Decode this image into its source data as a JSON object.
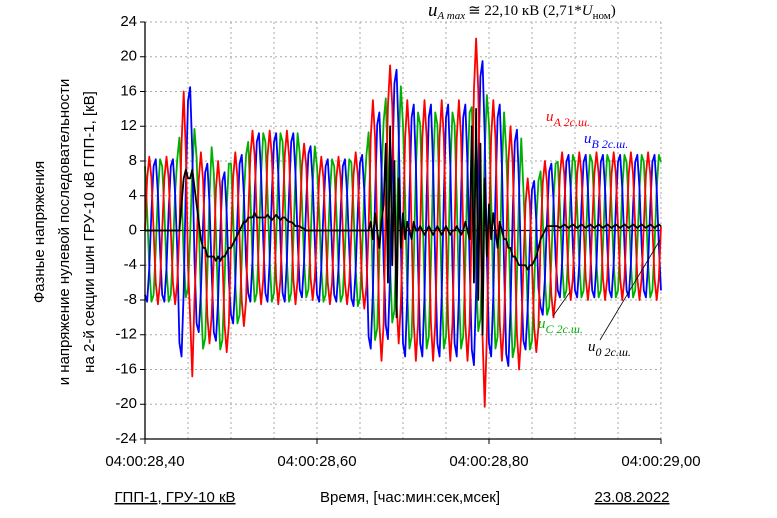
{
  "chart_data": {
    "type": "line",
    "ylabel": [
      "Фазные напряжения",
      "и напряжение нулевой последовательности",
      "на 2-й секции шин ГРУ-10 кВ ГПП-1, [кВ]"
    ],
    "xlabel": "Время, [час:мин:сек,мсек]",
    "footer_left": "ГПП-1, ГРУ-10 кВ",
    "footer_right": "23.08.2022",
    "peak_annotation": {
      "symbol": "u",
      "subscript": "A max",
      "text": "≅ 22,10 кВ (2,71*",
      "symbol2": "U",
      "subscript2": "ном",
      "close": ")"
    },
    "xlim": [
      28.4,
      29.0
    ],
    "xticks": [
      {
        "value": 28.4,
        "label": "04:00:28,40"
      },
      {
        "value": 28.6,
        "label": "04:00:28,60"
      },
      {
        "value": 28.8,
        "label": "04:00:28,80"
      },
      {
        "value": 29.0,
        "label": "04:00:29,00"
      }
    ],
    "xgrid": [
      28.45,
      28.5,
      28.55,
      28.65,
      28.7,
      28.75,
      28.85,
      28.9,
      28.95
    ],
    "ylim": [
      -24,
      24
    ],
    "yticks": [
      -24,
      -20,
      -16,
      -12,
      -8,
      -4,
      0,
      4,
      8,
      12,
      16,
      20,
      24
    ],
    "grid": true,
    "x": [
      28.4,
      28.4025,
      28.405,
      28.4075,
      28.41,
      28.4125,
      28.415,
      28.4175,
      28.42,
      28.4225,
      28.425,
      28.4275,
      28.43,
      28.4325,
      28.435,
      28.4375,
      28.44,
      28.4425,
      28.445,
      28.4475,
      28.45,
      28.4525,
      28.455,
      28.4575,
      28.46,
      28.4625,
      28.465,
      28.4675,
      28.47,
      28.4725,
      28.475,
      28.4775,
      28.48,
      28.4825,
      28.485,
      28.4875,
      28.49,
      28.4925,
      28.495,
      28.4975,
      28.5,
      28.5025,
      28.505,
      28.5075,
      28.51,
      28.5125,
      28.515,
      28.5175,
      28.52,
      28.5225,
      28.525,
      28.5275,
      28.53,
      28.5325,
      28.535,
      28.5375,
      28.54,
      28.5425,
      28.545,
      28.5475,
      28.55,
      28.5525,
      28.555,
      28.5575,
      28.56,
      28.5625,
      28.565,
      28.5675,
      28.57,
      28.5725,
      28.575,
      28.5775,
      28.58,
      28.5825,
      28.585,
      28.5875,
      28.59,
      28.5925,
      28.595,
      28.5975,
      28.6,
      28.6025,
      28.605,
      28.6075,
      28.61,
      28.6125,
      28.615,
      28.6175,
      28.62,
      28.6225,
      28.625,
      28.6275,
      28.63,
      28.6325,
      28.635,
      28.6375,
      28.64,
      28.6425,
      28.645,
      28.6475,
      28.65,
      28.6525,
      28.655,
      28.6575,
      28.66,
      28.6625,
      28.665,
      28.6675,
      28.67,
      28.6725,
      28.675,
      28.6775,
      28.68,
      28.6825,
      28.685,
      28.6875,
      28.69,
      28.6925,
      28.695,
      28.6975,
      28.7,
      28.7025,
      28.705,
      28.7075,
      28.71,
      28.7125,
      28.715,
      28.7175,
      28.72,
      28.7225,
      28.725,
      28.7275,
      28.73,
      28.7325,
      28.735,
      28.7375,
      28.74,
      28.7425,
      28.745,
      28.7475,
      28.75,
      28.7525,
      28.755,
      28.7575,
      28.76,
      28.7625,
      28.765,
      28.7675,
      28.77,
      28.7725,
      28.775,
      28.7775,
      28.78,
      28.7825,
      28.785,
      28.7875,
      28.79,
      28.7925,
      28.795,
      28.7975,
      28.8,
      28.8025,
      28.805,
      28.8075,
      28.81,
      28.8125,
      28.815,
      28.8175,
      28.82,
      28.8225,
      28.825,
      28.8275,
      28.83,
      28.8325,
      28.835,
      28.8375,
      28.84,
      28.8425,
      28.845,
      28.8475,
      28.85,
      28.8525,
      28.855,
      28.8575,
      28.86,
      28.8625,
      28.865,
      28.8675,
      28.87,
      28.8725,
      28.875,
      28.8775,
      28.88,
      28.8825,
      28.885,
      28.8875,
      28.89,
      28.8925,
      28.895,
      28.8975,
      28.9,
      28.9025,
      28.905,
      28.9075,
      28.91,
      28.9125,
      28.915,
      28.9175,
      28.92,
      28.9225,
      28.925,
      28.9275,
      28.93,
      28.9325,
      28.935,
      28.9375,
      28.94,
      28.9425,
      28.945,
      28.9475,
      28.95,
      28.9525,
      28.955,
      28.9575,
      28.96,
      28.9625,
      28.965,
      28.9675,
      28.97,
      28.9725,
      28.975,
      28.9775,
      28.98,
      28.9825,
      28.985,
      28.9875,
      28.99,
      28.9925,
      28.995,
      28.9975,
      29.0
    ],
    "series": [
      {
        "name": "A 2с.ш.",
        "symbol": "u",
        "color": "#ff0000",
        "values": [
          0,
          6,
          8.5,
          6,
          0,
          -6,
          -8.5,
          -6,
          0,
          6,
          8.5,
          6,
          0,
          -6,
          -8.5,
          -6,
          0,
          10,
          16,
          9,
          -4,
          -10,
          -16.8,
          -8,
          -2,
          5.8,
          9,
          5.8,
          -2,
          -9.8,
          -13,
          -9.8,
          -3,
          4.8,
          8,
          4.8,
          -3,
          -10.8,
          -14,
          -10.8,
          -1,
          6.1,
          9,
          6.1,
          -1,
          -8.1,
          -11,
          -8.1,
          1.5,
          8.6,
          11.5,
          8.6,
          1.5,
          -5.6,
          -8.5,
          -5.6,
          1.5,
          8.6,
          11.5,
          8.6,
          1.5,
          -5.6,
          -8.5,
          -5.6,
          1.5,
          8.6,
          11.5,
          8.6,
          1.5,
          -5.6,
          -8.5,
          -5.6,
          1,
          7.4,
          10,
          7.4,
          1,
          -5.4,
          -8,
          -5.4,
          0,
          6,
          8.5,
          6,
          0,
          -6,
          -8.5,
          -6,
          0,
          6,
          8.5,
          6,
          0,
          -6,
          -8.5,
          -6,
          0,
          6.4,
          9,
          6.4,
          0,
          -6.4,
          -9,
          -6.4,
          0,
          10.7,
          15,
          10.7,
          0,
          -10.7,
          -15,
          -10.7,
          3,
          14.4,
          19,
          14.4,
          3,
          -8.4,
          -13,
          -8.4,
          0,
          10.7,
          15,
          10.7,
          0,
          -10.7,
          -15,
          -10.7,
          0,
          10.7,
          15,
          10.7,
          0,
          -10.7,
          -15,
          -10.7,
          0,
          10.7,
          15,
          10.7,
          0,
          -10.7,
          -15,
          -10.7,
          0,
          10.7,
          15,
          10.7,
          0,
          -10.7,
          -15,
          -10.7,
          2,
          16.2,
          22.1,
          16.2,
          2,
          -12.2,
          -20.3,
          -12.2,
          0,
          10.7,
          15,
          10.7,
          0,
          -10.7,
          -15,
          -10.7,
          -2,
          7.9,
          12,
          7.9,
          -2,
          -11.9,
          -16,
          -11.9,
          -4,
          3.1,
          6,
          3.1,
          -4,
          -11.1,
          -14,
          -11.1,
          -1,
          5.4,
          8,
          5.4,
          -1,
          -7.4,
          -10,
          -7.4,
          0.5,
          6.5,
          9,
          6.5,
          0.5,
          -5.5,
          -8,
          -5.5,
          0.5,
          6.5,
          9,
          6.5,
          0.5,
          -5.5,
          -8,
          -5.5,
          0.5,
          6.5,
          9,
          6.5,
          0.5,
          -5.5,
          -8,
          -5.5,
          0.5,
          6.5,
          9,
          6.5,
          0.5,
          -5.5,
          -8,
          -5.5,
          0.5,
          6.5,
          9,
          6.5,
          0.5,
          -5.5,
          -8,
          -5.5,
          0.5,
          6.5,
          9,
          6.5,
          0.5,
          -5.5,
          -8,
          -5.5,
          0.5
        ]
      },
      {
        "name": "B 2с.ш.",
        "symbol": "u",
        "color": "#0000ff",
        "values": [
          -7.4,
          -8.2,
          -4.3,
          2.2,
          7.4,
          8.2,
          4.3,
          -2.2,
          -7.4,
          -8.2,
          -4.3,
          2.2,
          7.4,
          8.2,
          4.3,
          -2.2,
          -12.9,
          -14.5,
          -7,
          5.2,
          14.9,
          16.5,
          9,
          -3.2,
          -10.7,
          -11.7,
          -7,
          0.6,
          6.7,
          7.7,
          3,
          -4.6,
          -11.7,
          -12.7,
          -8,
          -0.4,
          5.7,
          6.7,
          2,
          -5.6,
          -9.7,
          -10.7,
          -6,
          1.6,
          7.7,
          8.7,
          4,
          -3.6,
          -7.2,
          -8.2,
          -3.5,
          4.1,
          10.2,
          11.2,
          6.5,
          -1.1,
          -7.2,
          -8.2,
          -3.5,
          4.1,
          10.2,
          11.2,
          6.5,
          -1.1,
          -7.2,
          -8.2,
          -3.5,
          4.1,
          10.2,
          11.2,
          6.5,
          -1.1,
          -6.8,
          -7.7,
          -3.5,
          3.3,
          8.8,
          9.7,
          5.5,
          -1.3,
          -7.4,
          -8.2,
          -4.3,
          2.2,
          7.4,
          8.2,
          4.3,
          -2.2,
          -7.4,
          -8.2,
          -4.3,
          2.2,
          7.4,
          8.2,
          4.3,
          -2.2,
          -7.8,
          -8.7,
          -4.5,
          2.3,
          7.8,
          8.7,
          4.5,
          -2.3,
          -12.2,
          -13.6,
          -7,
          3.6,
          12.2,
          13.6,
          7,
          -3.6,
          -10.9,
          -12.5,
          -5,
          7.2,
          16.9,
          18.5,
          11,
          -1.2,
          -13,
          -14.5,
          -7.5,
          3.9,
          13,
          14.5,
          7.5,
          -3.9,
          -13,
          -14.5,
          -7.5,
          3.9,
          13,
          14.5,
          7.5,
          -3.9,
          -13,
          -14.5,
          -7.5,
          3.9,
          13,
          14.5,
          7.5,
          -3.9,
          -13,
          -14.5,
          -7.5,
          3.9,
          13,
          14.5,
          7.5,
          -3.9,
          -13.7,
          -15.5,
          -7,
          6.7,
          17.7,
          19.5,
          11,
          -2.7,
          -13,
          -14.5,
          -7.5,
          3.9,
          13,
          14.5,
          7.5,
          -3.9,
          -14.2,
          -15.6,
          -9,
          1.6,
          10.2,
          11.6,
          5,
          -5.6,
          -12.7,
          -13.7,
          -9,
          -1.4,
          4.7,
          5.7,
          1,
          -6.6,
          -8.8,
          -9.7,
          -5.5,
          1.3,
          6.8,
          7.7,
          3.5,
          -3.3,
          -6.9,
          -7.7,
          -3.8,
          2.7,
          7.9,
          8.7,
          4.8,
          -1.7,
          -6.9,
          -7.7,
          -3.8,
          2.7,
          7.9,
          8.7,
          4.8,
          -1.7,
          -6.9,
          -7.7,
          -3.8,
          2.7,
          7.9,
          8.7,
          4.8,
          -1.7,
          -6.9,
          -7.7,
          -3.8,
          2.7,
          7.9,
          8.7,
          4.8,
          -1.7,
          -6.9,
          -7.7,
          -3.8,
          2.7,
          7.9,
          8.7,
          4.8,
          -1.7,
          -6.9,
          -7.7,
          -3.8,
          2.7,
          7.9,
          8.7,
          4.8,
          -1.7,
          -6.9
        ]
      },
      {
        "name": "C 2с.ш.",
        "symbol": "u",
        "color": "#00b000",
        "values": [
          7.4,
          2.2,
          -4.3,
          -8.2,
          -7.4,
          -2.2,
          4.3,
          8.2,
          7.4,
          2.2,
          -4.3,
          -8.2,
          -7.4,
          -2.2,
          4.3,
          8.2,
          10.7,
          4.6,
          -3,
          -7.7,
          -6.7,
          -0.6,
          7,
          11.7,
          8.4,
          1.1,
          -8,
          -13.6,
          -12.4,
          -5.1,
          4,
          9.6,
          6.6,
          -0.1,
          -8.5,
          -13.7,
          -12.6,
          -5.9,
          2.5,
          7.7,
          7.7,
          1.6,
          -6,
          -10.7,
          -9.7,
          -3.6,
          4,
          8.7,
          10.2,
          4.1,
          -3.5,
          -8.2,
          -7.2,
          -1.1,
          6.5,
          11.2,
          10.2,
          4.1,
          -3.5,
          -8.2,
          -7.2,
          -1.1,
          6.5,
          11.2,
          10.2,
          4.1,
          -3.5,
          -8.2,
          -7.2,
          -1.1,
          6.5,
          11.2,
          8.8,
          3.3,
          -3.5,
          -7.7,
          -6.8,
          -1.3,
          5.5,
          9.7,
          7.4,
          2.2,
          -4.3,
          -8.2,
          -7.4,
          -2.2,
          4.3,
          8.2,
          7.4,
          2.2,
          -4.3,
          -8.2,
          -7.4,
          -2.2,
          4.3,
          8.2,
          7.8,
          2.3,
          -4.5,
          -8.7,
          -7.8,
          -2.3,
          4.5,
          8.7,
          11.3,
          3.4,
          -6.5,
          -12.6,
          -11.3,
          -3.4,
          6.5,
          12.6,
          15.2,
          6.6,
          -4,
          -10.6,
          -9.2,
          -0.6,
          10,
          16.6,
          12.2,
          3.6,
          -7,
          -13.6,
          -12.2,
          -3.6,
          7,
          13.6,
          12.2,
          3.6,
          -7,
          -13.6,
          -12.2,
          -3.6,
          7,
          13.6,
          12.2,
          3.6,
          -7,
          -13.6,
          -12.2,
          -3.6,
          7,
          13.6,
          12.2,
          3.6,
          -7,
          -13.6,
          -12.2,
          -3.6,
          7,
          13.6,
          14.2,
          5.6,
          -5,
          -11.6,
          -10.2,
          -1.6,
          9,
          15.6,
          12.2,
          3.6,
          -7,
          -13.6,
          -12.2,
          -3.6,
          7,
          13.6,
          9.3,
          1.4,
          -8.5,
          -14.6,
          -13.3,
          -5.4,
          4.5,
          10.6,
          4.7,
          -1.4,
          -9,
          -13.7,
          -12.7,
          -6.6,
          1,
          5.7,
          6.8,
          1.3,
          -5.5,
          -9.7,
          -8.8,
          -3.3,
          3.5,
          7.7,
          7.9,
          2.7,
          -3.8,
          -7.7,
          -6.9,
          -1.7,
          4.8,
          8.7,
          7.9,
          2.7,
          -3.8,
          -7.7,
          -6.9,
          -1.7,
          4.8,
          8.7,
          7.9,
          2.7,
          -3.8,
          -7.7,
          -6.9,
          -1.7,
          4.8,
          8.7,
          7.9,
          2.7,
          -3.8,
          -7.7,
          -6.9,
          -1.7,
          4.8,
          8.7,
          7.9,
          2.7,
          -3.8,
          -7.7,
          -6.9,
          -1.7,
          4.8,
          8.7,
          7.9,
          2.7,
          -3.8,
          -7.7,
          -6.9,
          -1.7,
          4.8,
          8.7,
          7.9
        ]
      },
      {
        "name": "0 2с.ш.",
        "symbol": "u",
        "color": "#000000",
        "values": [
          0,
          0,
          0,
          0,
          0,
          0,
          0,
          0,
          0,
          0,
          0,
          0,
          0,
          0,
          0,
          0,
          0,
          3,
          6,
          7,
          6,
          6,
          7,
          5,
          3,
          1,
          -1,
          -2,
          -2,
          -3,
          -3,
          -3,
          -3,
          -3.5,
          -3,
          -3.5,
          -3,
          -3,
          -2.5,
          -2,
          -2,
          -1.5,
          -1,
          -0.5,
          0,
          0.5,
          1,
          1,
          1.5,
          1.5,
          1.5,
          2,
          1.5,
          1.5,
          1.5,
          1.5,
          1.5,
          1.8,
          1.5,
          1.2,
          1.5,
          1.8,
          1.5,
          1.2,
          1.5,
          1.5,
          1.2,
          1,
          1,
          0.8,
          0.5,
          0.5,
          0.5,
          0.3,
          0.2,
          0,
          0,
          0,
          0,
          0,
          0,
          0,
          0,
          0,
          0,
          0,
          0,
          0,
          0,
          0,
          0,
          0,
          0,
          0,
          0,
          0,
          0,
          0,
          0,
          0,
          0,
          0,
          0,
          0,
          0,
          1,
          -1,
          2,
          0,
          -2,
          1,
          3,
          10,
          -6,
          12,
          -4,
          8,
          -10,
          6,
          -2,
          2,
          -1,
          1,
          0,
          -1,
          1,
          0,
          0,
          0.5,
          0,
          -0.5,
          0,
          0.5,
          0,
          -0.5,
          0,
          0.5,
          0,
          -0.5,
          0,
          0.5,
          0,
          -0.5,
          0,
          0,
          0.5,
          0,
          -0.5,
          0,
          1,
          0,
          -1,
          12,
          -6,
          14,
          -8,
          10,
          -12,
          6,
          -3,
          3,
          -1,
          2,
          0,
          -2,
          1,
          0,
          -1,
          -1,
          -2,
          -2,
          -3,
          -3,
          -3.5,
          -4,
          -4,
          -4,
          -4,
          -4.5,
          -4,
          -4,
          -3.5,
          -3,
          -2,
          -1,
          -0.5,
          0,
          0.5,
          0.5,
          0.5,
          0.5,
          0.5,
          0.5,
          0.3,
          0.5,
          0.7,
          0.5,
          0.3,
          0.5,
          0.7,
          0.5,
          0.3,
          0.5,
          0.7,
          0.5,
          0.3,
          0.5,
          0.7,
          0.5,
          0.3,
          0.5,
          0.7,
          0.5,
          0.3,
          0.5,
          0.7,
          0.5,
          0.3,
          0.5,
          0.7,
          0.5,
          0.3,
          0.5,
          0.7,
          0.5,
          0.3,
          0.5,
          0.7,
          0.5,
          0.3,
          0.5,
          0.7,
          0.5,
          0.3,
          0.5,
          0.7,
          0.5,
          0.3,
          0.5,
          0.7,
          0.5
        ]
      }
    ]
  }
}
